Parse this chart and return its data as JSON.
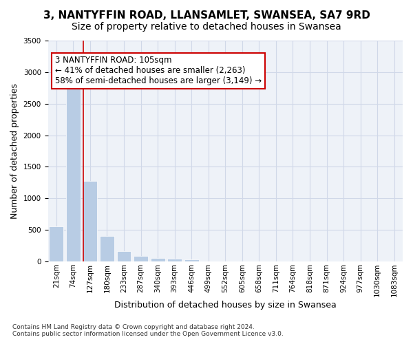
{
  "title_line1": "3, NANTYFFIN ROAD, LLANSAMLET, SWANSEA, SA7 9RD",
  "title_line2": "Size of property relative to detached houses in Swansea",
  "xlabel": "Distribution of detached houses by size in Swansea",
  "ylabel": "Number of detached properties",
  "bin_labels": [
    "21sqm",
    "74sqm",
    "127sqm",
    "180sqm",
    "233sqm",
    "287sqm",
    "340sqm",
    "393sqm",
    "446sqm",
    "499sqm",
    "552sqm",
    "605sqm",
    "658sqm",
    "711sqm",
    "764sqm",
    "818sqm",
    "871sqm",
    "924sqm",
    "977sqm",
    "1030sqm",
    "1083sqm"
  ],
  "bar_heights": [
    560,
    2900,
    1280,
    400,
    160,
    90,
    55,
    40,
    30,
    5,
    0,
    0,
    0,
    0,
    0,
    0,
    0,
    0,
    0,
    0,
    0
  ],
  "bar_color": "#b8cce4",
  "bar_edge_color": "#ffffff",
  "grid_color": "#d0d8e8",
  "background_color": "#eef2f8",
  "vline_color": "#cc0000",
  "annotation_text": "3 NANTYFFIN ROAD: 105sqm\n← 41% of detached houses are smaller (2,263)\n58% of semi-detached houses are larger (3,149) →",
  "annotation_box_color": "#ffffff",
  "annotation_border_color": "#cc0000",
  "ylim": [
    0,
    3500
  ],
  "yticks": [
    0,
    500,
    1000,
    1500,
    2000,
    2500,
    3000,
    3500
  ],
  "footnote": "Contains HM Land Registry data © Crown copyright and database right 2024.\nContains public sector information licensed under the Open Government Licence v3.0.",
  "title_fontsize": 11,
  "subtitle_fontsize": 10,
  "axis_label_fontsize": 9,
  "tick_fontsize": 7.5,
  "annotation_fontsize": 8.5,
  "property_sqm": 105,
  "bin_starts": [
    21,
    74,
    127,
    180,
    233,
    287,
    340,
    393,
    446,
    499,
    552,
    605,
    658,
    711,
    764,
    818,
    871,
    924,
    977,
    1030,
    1083
  ]
}
